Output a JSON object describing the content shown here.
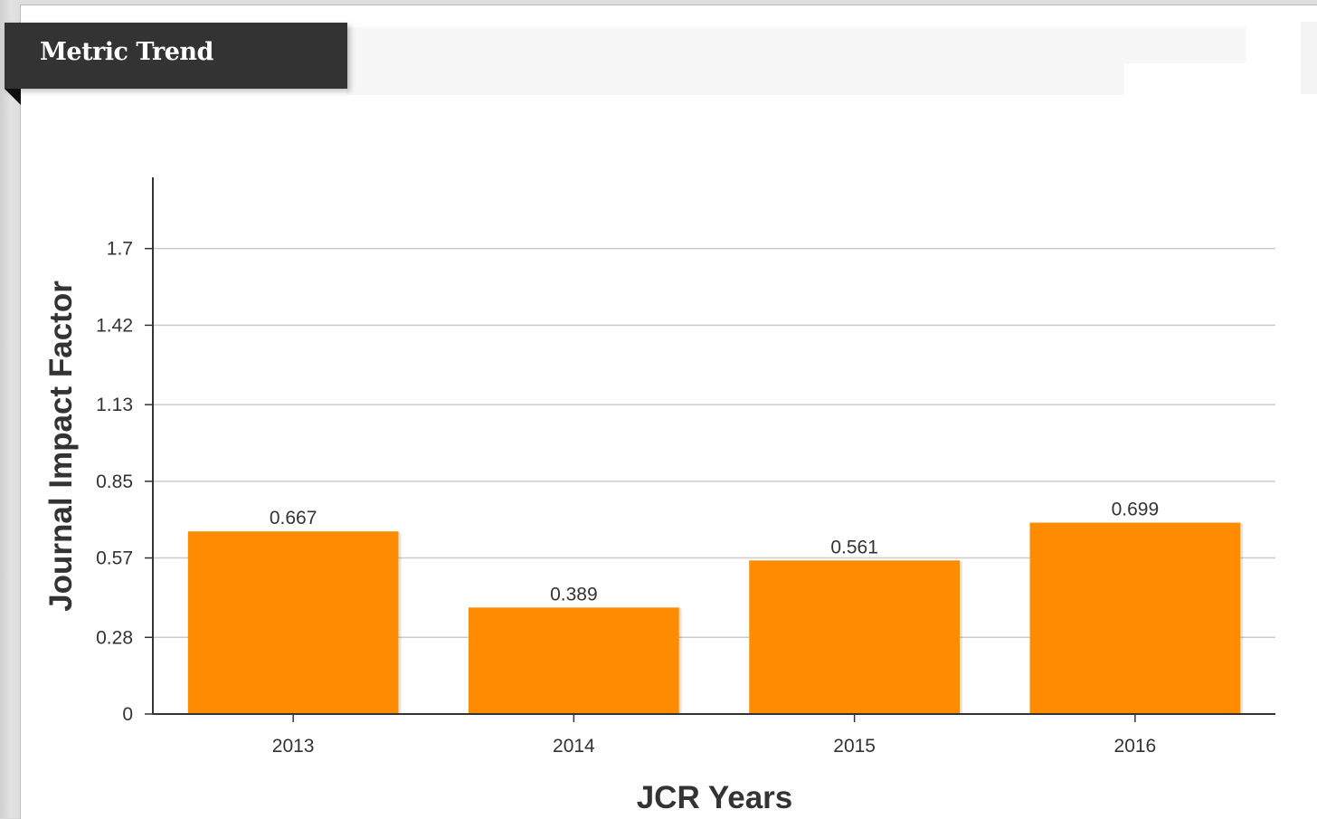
{
  "header": {
    "title": "Metric Trend"
  },
  "colors": {
    "bar": "#FF8C00",
    "tab_background": "#333333",
    "gridline": "#cccccc",
    "axis": "#333333"
  },
  "chart_data": {
    "type": "bar",
    "categories": [
      "2013",
      "2014",
      "2015",
      "2016"
    ],
    "values": [
      0.667,
      0.389,
      0.561,
      0.699
    ],
    "data_labels": [
      "0.667",
      "0.389",
      "0.561",
      "0.699"
    ],
    "xlabel": "JCR Years",
    "ylabel": "Journal Impact Factor",
    "yticks": [
      0,
      0.28,
      0.57,
      0.85,
      1.13,
      1.42,
      1.7
    ],
    "ytick_labels": [
      "0",
      "0.28",
      "0.57",
      "0.85",
      "1.13",
      "1.42",
      "1.7"
    ],
    "ylim": [
      0,
      1.96
    ],
    "grid": true,
    "legend": "none"
  }
}
